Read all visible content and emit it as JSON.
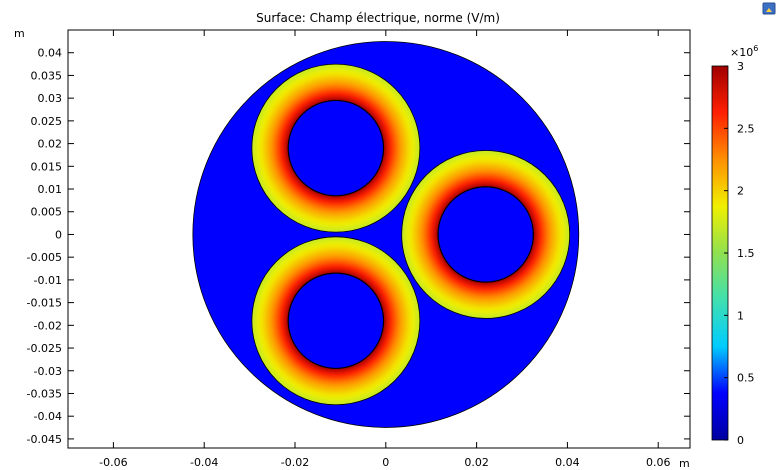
{
  "chart_data": {
    "type": "heatmap",
    "title": "Surface: Champ électrique, norme (V/m)",
    "x_unit": "m",
    "y_unit": "m",
    "xlim": [
      -0.07,
      0.067
    ],
    "ylim": [
      -0.047,
      0.045
    ],
    "x_ticks": [
      "-0.06",
      "-0.04",
      "-0.02",
      "0",
      "0.02",
      "0.04",
      "0.06"
    ],
    "y_ticks": [
      "0.04",
      "0.035",
      "0.03",
      "0.025",
      "0.02",
      "0.015",
      "0.01",
      "0.005",
      "0",
      "-0.005",
      "-0.01",
      "-0.015",
      "-0.02",
      "-0.025",
      "-0.03",
      "-0.035",
      "-0.04",
      "-0.045"
    ],
    "colorbar": {
      "multiplier": "×10",
      "exponent": "6",
      "min": 0,
      "max": 3,
      "ticks": [
        "3",
        "2.5",
        "2",
        "1.5",
        "1",
        "0.5",
        "0"
      ],
      "colormap": [
        "#0000a0",
        "#0000ff",
        "#00ccff",
        "#40e0b0",
        "#90e050",
        "#f0f000",
        "#ff9000",
        "#ff2000",
        "#a00000"
      ]
    },
    "outer_region": {
      "center": [
        0,
        0
      ],
      "radius": 0.0425,
      "field_value": 0,
      "color": "#0000ff"
    },
    "cables": [
      {
        "center": [
          -0.011,
          0.019
        ],
        "inner_radius": 0.0105,
        "outer_radius": 0.0185,
        "field_inner": 3.0,
        "field_outer": 1.7
      },
      {
        "center": [
          0.022,
          0.0
        ],
        "inner_radius": 0.0105,
        "outer_radius": 0.0185,
        "field_inner": 3.0,
        "field_outer": 1.7
      },
      {
        "center": [
          -0.011,
          -0.019
        ],
        "inner_radius": 0.0105,
        "outer_radius": 0.0185,
        "field_inner": 3.0,
        "field_outer": 1.7
      }
    ],
    "grid": false,
    "legend": "colorbar-right"
  }
}
